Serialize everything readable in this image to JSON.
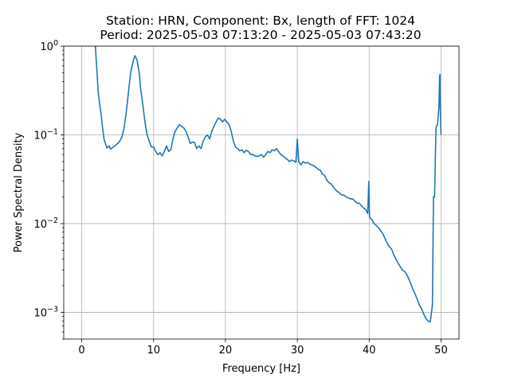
{
  "chart_data": {
    "type": "line",
    "title": "Station: HRN, Component: Bx, length of FFT: 1024",
    "subtitle": "Period: 2025-05-03 07:13:20 - 2025-05-03 07:43:20",
    "xlabel": "Frequency [Hz]",
    "ylabel": "Power Spectral Density",
    "xlim": [
      -2.5,
      52.5
    ],
    "ylim": [
      0.0005,
      1
    ],
    "yscale": "log",
    "grid": true,
    "line_color": "#1f77b4",
    "x_ticks": [
      0,
      10,
      20,
      30,
      40,
      50
    ],
    "x_tick_labels": [
      "0",
      "10",
      "20",
      "30",
      "40",
      "50"
    ],
    "y_ticks": [
      0.001,
      0.01,
      0.1,
      1
    ],
    "y_tick_bases": [
      "10",
      "10",
      "10",
      "10"
    ],
    "y_tick_exponents": [
      "−3",
      "−2",
      "−1",
      "0"
    ],
    "series": [
      {
        "x": [
          1.9,
          2.1,
          2.3,
          2.5,
          2.7,
          2.9,
          3.1,
          3.3,
          3.5,
          3.8,
          4.0,
          4.3,
          4.6,
          5.0,
          5.3,
          5.6,
          5.9,
          6.2,
          6.5,
          6.8,
          7.1,
          7.4,
          7.7,
          8.0,
          8.2,
          8.5,
          8.8,
          9.1,
          9.4,
          9.7,
          10.0,
          10.3,
          10.6,
          10.9,
          11.2,
          11.5,
          11.8,
          12.1,
          12.4,
          12.7,
          13.0,
          13.3,
          13.6,
          13.9,
          14.2,
          14.5,
          14.8,
          15.1,
          15.4,
          15.7,
          16.0,
          16.3,
          16.6,
          16.9,
          17.2,
          17.5,
          17.8,
          18.1,
          18.4,
          18.7,
          19.0,
          19.3,
          19.6,
          19.9,
          20.2,
          20.5,
          20.8,
          21.1,
          21.4,
          21.7,
          22.0,
          22.3,
          22.6,
          22.9,
          23.2,
          23.5,
          23.8,
          24.1,
          24.4,
          24.7,
          25.0,
          25.3,
          25.6,
          25.9,
          26.2,
          26.5,
          26.8,
          27.1,
          27.4,
          27.7,
          28.0,
          28.3,
          28.6,
          28.9,
          29.2,
          29.5,
          29.8,
          30.0,
          30.2,
          30.5,
          30.8,
          31.1,
          31.4,
          31.7,
          32.0,
          32.3,
          32.6,
          32.9,
          33.2,
          33.5,
          33.8,
          34.1,
          34.4,
          34.7,
          35.0,
          35.3,
          35.6,
          35.9,
          36.2,
          36.5,
          36.8,
          37.1,
          37.4,
          37.7,
          38.0,
          38.3,
          38.6,
          38.9,
          39.2,
          39.5,
          39.8,
          39.95,
          40.05,
          40.15,
          40.4,
          40.7,
          41.0,
          41.3,
          41.6,
          41.9,
          42.2,
          42.5,
          42.8,
          43.1,
          43.4,
          43.7,
          44.0,
          44.3,
          44.6,
          44.9,
          45.2,
          45.5,
          45.8,
          46.1,
          46.4,
          46.7,
          47.0,
          47.3,
          47.6,
          47.9,
          48.2,
          48.5,
          48.8,
          48.95,
          49.1,
          49.2,
          49.3,
          49.5,
          49.7,
          49.8,
          49.85,
          49.9,
          50.0
        ],
        "y": [
          1.0,
          0.55,
          0.3,
          0.22,
          0.17,
          0.12,
          0.09,
          0.08,
          0.071,
          0.075,
          0.069,
          0.072,
          0.075,
          0.08,
          0.085,
          0.095,
          0.12,
          0.18,
          0.3,
          0.5,
          0.65,
          0.78,
          0.7,
          0.5,
          0.33,
          0.22,
          0.14,
          0.1,
          0.085,
          0.073,
          0.073,
          0.065,
          0.06,
          0.063,
          0.058,
          0.065,
          0.075,
          0.065,
          0.068,
          0.09,
          0.11,
          0.12,
          0.13,
          0.125,
          0.12,
          0.11,
          0.095,
          0.08,
          0.083,
          0.082,
          0.07,
          0.075,
          0.07,
          0.085,
          0.095,
          0.1,
          0.09,
          0.11,
          0.125,
          0.14,
          0.155,
          0.15,
          0.14,
          0.15,
          0.14,
          0.13,
          0.11,
          0.085,
          0.073,
          0.07,
          0.066,
          0.068,
          0.063,
          0.067,
          0.065,
          0.06,
          0.06,
          0.058,
          0.057,
          0.058,
          0.06,
          0.056,
          0.06,
          0.065,
          0.063,
          0.068,
          0.066,
          0.07,
          0.065,
          0.06,
          0.058,
          0.055,
          0.053,
          0.05,
          0.052,
          0.051,
          0.049,
          0.09,
          0.05,
          0.046,
          0.05,
          0.048,
          0.049,
          0.047,
          0.046,
          0.045,
          0.043,
          0.041,
          0.04,
          0.036,
          0.035,
          0.031,
          0.029,
          0.028,
          0.026,
          0.024,
          0.023,
          0.022,
          0.021,
          0.021,
          0.02,
          0.0195,
          0.019,
          0.019,
          0.018,
          0.017,
          0.017,
          0.016,
          0.015,
          0.0145,
          0.013,
          0.03,
          0.012,
          0.0115,
          0.011,
          0.01,
          0.0095,
          0.009,
          0.0083,
          0.0077,
          0.0068,
          0.006,
          0.0055,
          0.0052,
          0.0045,
          0.004,
          0.0036,
          0.0033,
          0.003,
          0.0029,
          0.0027,
          0.0024,
          0.0021,
          0.0018,
          0.0016,
          0.0014,
          0.0012,
          0.0011,
          0.00095,
          0.00085,
          0.0008,
          0.00078,
          0.0012,
          0.02,
          0.02,
          0.05,
          0.12,
          0.13,
          0.2,
          0.45,
          0.48,
          0.2,
          0.1
        ]
      }
    ]
  }
}
